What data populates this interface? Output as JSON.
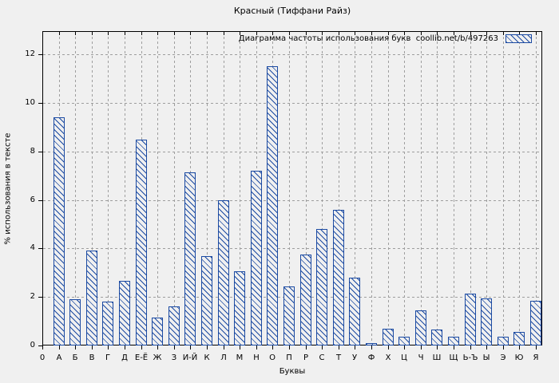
{
  "colors": {
    "background": "#f0f0f0",
    "bar": "#1b4aa2",
    "grid": "#9e9e9e",
    "axis": "#000000"
  },
  "chart_data": {
    "type": "bar",
    "title": "Красный (Тиффани Райз)",
    "legend": "Диаграмма частоты использования букв  coollib.net/b/497263",
    "legend_position": "top-right-inside",
    "xlabel": "Буквы",
    "ylabel": "% использования в тексте",
    "origin_tick_label": "0",
    "categories": [
      "А",
      "Б",
      "В",
      "Г",
      "Д",
      "Е-Ё",
      "Ж",
      "З",
      "И-Й",
      "К",
      "Л",
      "М",
      "Н",
      "О",
      "П",
      "Р",
      "С",
      "Т",
      "У",
      "Ф",
      "Х",
      "Ц",
      "Ч",
      "Ш",
      "Щ",
      "Ь-Ъ",
      "Ы",
      "Э",
      "Ю",
      "Я"
    ],
    "values": [
      9.4,
      1.9,
      3.9,
      1.8,
      2.65,
      8.5,
      1.15,
      1.6,
      7.15,
      3.7,
      6.0,
      3.05,
      7.2,
      11.5,
      2.45,
      3.75,
      4.8,
      5.6,
      2.8,
      0.1,
      0.7,
      0.35,
      1.45,
      0.65,
      0.35,
      2.15,
      1.95,
      0.35,
      0.55,
      1.85
    ],
    "yticks": [
      0,
      2,
      4,
      6,
      8,
      10,
      12
    ],
    "ylim": [
      0,
      12.96
    ],
    "grid": true,
    "hatch": "\\"
  }
}
